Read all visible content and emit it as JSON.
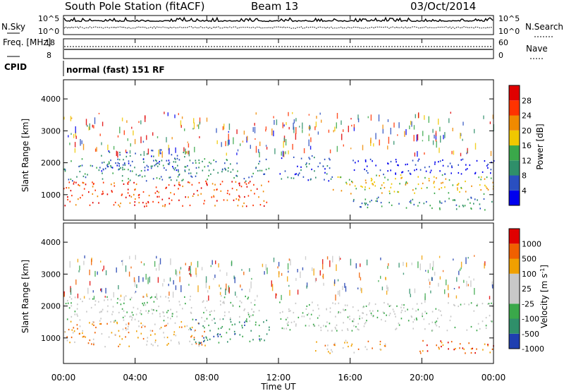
{
  "header": {
    "station": "South Pole Station (fitACF)",
    "beam": "Beam 13",
    "date": "03/Oct/2014"
  },
  "chart_data": [
    {
      "type": "line",
      "name": "noise-panel",
      "ylabel_left": "N.Sky",
      "ylabel_right": "N.Search",
      "left_ticks": [
        "10^5",
        "10^0"
      ],
      "right_ticks": [
        "10^5",
        "10^0"
      ]
    },
    {
      "type": "line",
      "name": "frequency-panel",
      "ylabel_left": "Freq. [MHz]",
      "ylabel_right": "Nave",
      "left_ticks": [
        "18",
        "8"
      ],
      "right_ticks": [
        "60",
        "0"
      ]
    },
    {
      "type": "table",
      "name": "cpid-panel",
      "label": "CPID",
      "value": "normal (fast) 151 RF"
    },
    {
      "type": "heatmap",
      "name": "power-panel",
      "ylabel": "Slant Range [km]",
      "yticks": [
        "1000",
        "2000",
        "3000",
        "4000"
      ],
      "ylim": [
        200,
        4600
      ],
      "colorbar_label": "Power [dB]",
      "colorbar_ticks": [
        "4",
        "8",
        "12",
        "16",
        "20",
        "24",
        "28"
      ],
      "colors": [
        "#0000ee",
        "#2a4fc0",
        "#2f8f6a",
        "#3aa84a",
        "#f0c800",
        "#f08a00",
        "#ff3300",
        "#e00000"
      ],
      "bands": [
        {
          "t0": 0,
          "t1": 11.5,
          "r0": 600,
          "r1": 1400,
          "level": 6
        },
        {
          "t0": 0,
          "t1": 11.5,
          "r0": 1400,
          "r1": 2100,
          "level": 2
        },
        {
          "t0": 2,
          "t1": 7,
          "r0": 1700,
          "r1": 2400,
          "level": 1
        },
        {
          "t0": 12,
          "t1": 15,
          "r0": 1400,
          "r1": 2200,
          "level": 1
        },
        {
          "t0": 15,
          "t1": 24,
          "r0": 1000,
          "r1": 1600,
          "level": 4
        },
        {
          "t0": 16,
          "t1": 24,
          "r0": 500,
          "r1": 900,
          "level": 2
        },
        {
          "t0": 16,
          "t1": 24,
          "r0": 1600,
          "r1": 2100,
          "level": 0
        }
      ]
    },
    {
      "type": "heatmap",
      "name": "velocity-panel",
      "ylabel": "Slant Range [km]",
      "yticks": [
        "1000",
        "2000",
        "3000",
        "4000"
      ],
      "ylim": [
        200,
        4600
      ],
      "colorbar_label": "Velocity [m s^-1]",
      "colorbar_ticks": [
        "1000",
        "500",
        "100",
        "25",
        "-25",
        "-100",
        "-500",
        "-1000"
      ],
      "colors": [
        "#1f3fb0",
        "#2f8f6a",
        "#3aa84a",
        "#c8c8c8",
        "#c8c8c8",
        "#f0a000",
        "#f06000",
        "#e00000"
      ],
      "bands": [
        {
          "t0": 0,
          "t1": 8,
          "r0": 700,
          "r1": 1500,
          "level": 5
        },
        {
          "t0": 7,
          "t1": 11.5,
          "r0": 800,
          "r1": 1600,
          "level": 1
        },
        {
          "t0": 0,
          "t1": 11,
          "r0": 1500,
          "r1": 2300,
          "level": 3
        },
        {
          "t0": 12,
          "t1": 24,
          "r0": 1200,
          "r1": 2100,
          "level": 3
        },
        {
          "t0": 19.5,
          "t1": 24,
          "r0": 500,
          "r1": 900,
          "level": 6
        },
        {
          "t0": 14,
          "t1": 18,
          "r0": 500,
          "r1": 900,
          "level": 5
        }
      ]
    }
  ],
  "xaxis": {
    "label": "Time UT",
    "ticks": [
      "00:00",
      "04:00",
      "08:00",
      "12:00",
      "16:00",
      "20:00",
      "00:00"
    ],
    "range_hours": [
      0,
      24
    ]
  }
}
